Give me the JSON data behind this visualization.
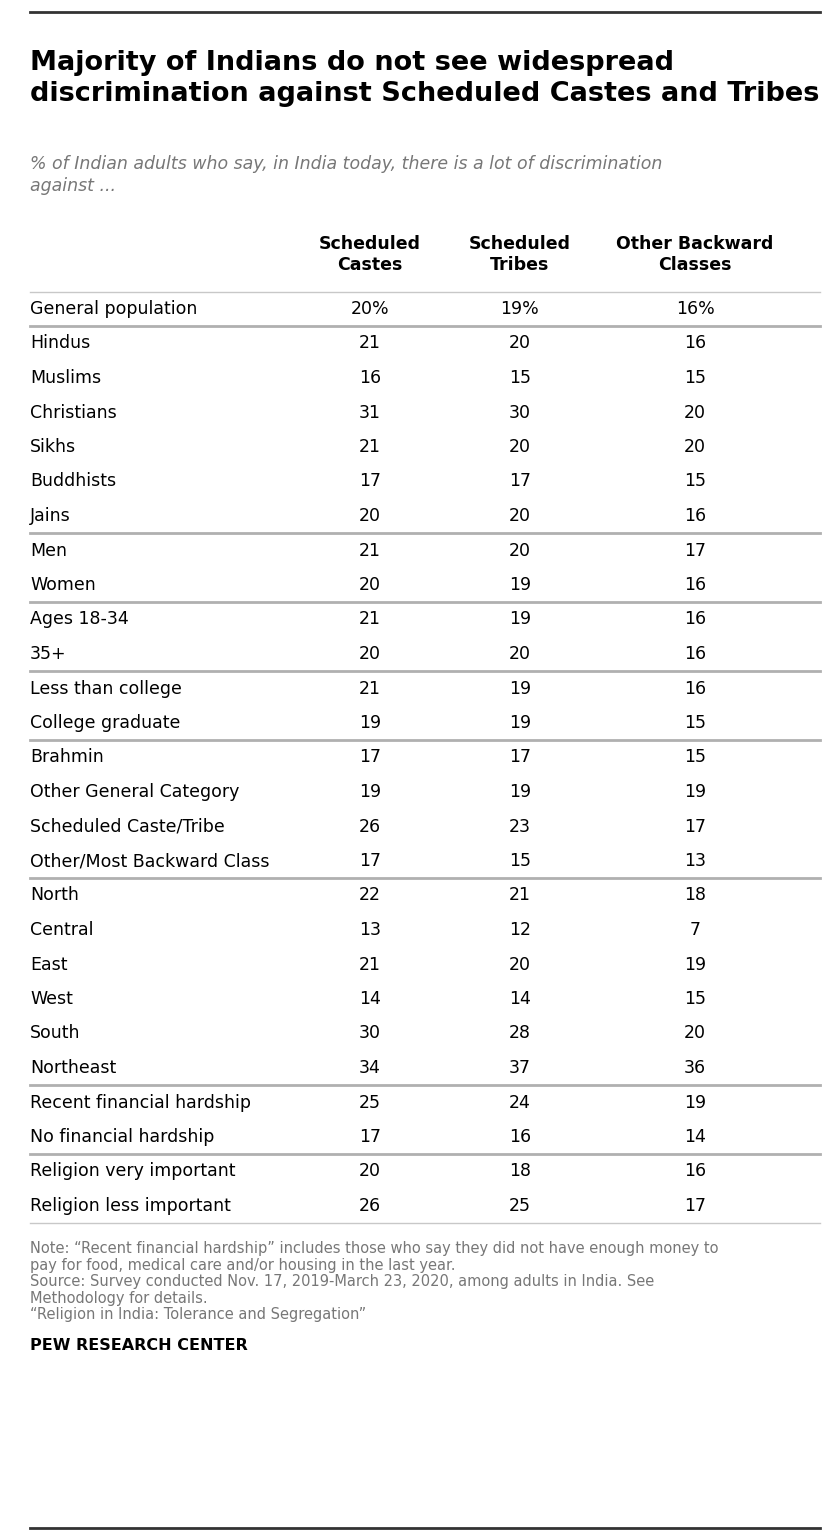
{
  "title": "Majority of Indians do not see widespread\ndiscrimination against Scheduled Castes and Tribes",
  "subtitle": "% of Indian adults who say, in India today, there is a lot of discrimination\nagainst ...",
  "col_headers": [
    "Scheduled\nCastes",
    "Scheduled\nTribes",
    "Other Backward\nClasses"
  ],
  "rows": [
    {
      "label": "General population",
      "values": [
        "20%",
        "19%",
        "16%"
      ],
      "bold": false,
      "separator_below": true
    },
    {
      "label": "Hindus",
      "values": [
        "21",
        "20",
        "16"
      ],
      "bold": false,
      "separator_below": false
    },
    {
      "label": "Muslims",
      "values": [
        "16",
        "15",
        "15"
      ],
      "bold": false,
      "separator_below": false
    },
    {
      "label": "Christians",
      "values": [
        "31",
        "30",
        "20"
      ],
      "bold": false,
      "separator_below": false
    },
    {
      "label": "Sikhs",
      "values": [
        "21",
        "20",
        "20"
      ],
      "bold": false,
      "separator_below": false
    },
    {
      "label": "Buddhists",
      "values": [
        "17",
        "17",
        "15"
      ],
      "bold": false,
      "separator_below": false
    },
    {
      "label": "Jains",
      "values": [
        "20",
        "20",
        "16"
      ],
      "bold": false,
      "separator_below": true
    },
    {
      "label": "Men",
      "values": [
        "21",
        "20",
        "17"
      ],
      "bold": false,
      "separator_below": false
    },
    {
      "label": "Women",
      "values": [
        "20",
        "19",
        "16"
      ],
      "bold": false,
      "separator_below": true
    },
    {
      "label": "Ages 18-34",
      "values": [
        "21",
        "19",
        "16"
      ],
      "bold": false,
      "separator_below": false
    },
    {
      "label": "35+",
      "values": [
        "20",
        "20",
        "16"
      ],
      "bold": false,
      "separator_below": true
    },
    {
      "label": "Less than college",
      "values": [
        "21",
        "19",
        "16"
      ],
      "bold": false,
      "separator_below": false
    },
    {
      "label": "College graduate",
      "values": [
        "19",
        "19",
        "15"
      ],
      "bold": false,
      "separator_below": true
    },
    {
      "label": "Brahmin",
      "values": [
        "17",
        "17",
        "15"
      ],
      "bold": false,
      "separator_below": false
    },
    {
      "label": "Other General Category",
      "values": [
        "19",
        "19",
        "19"
      ],
      "bold": false,
      "separator_below": false
    },
    {
      "label": "Scheduled Caste/Tribe",
      "values": [
        "26",
        "23",
        "17"
      ],
      "bold": false,
      "separator_below": false
    },
    {
      "label": "Other/Most Backward Class",
      "values": [
        "17",
        "15",
        "13"
      ],
      "bold": false,
      "separator_below": true
    },
    {
      "label": "North",
      "values": [
        "22",
        "21",
        "18"
      ],
      "bold": false,
      "separator_below": false
    },
    {
      "label": "Central",
      "values": [
        "13",
        "12",
        "7"
      ],
      "bold": false,
      "separator_below": false
    },
    {
      "label": "East",
      "values": [
        "21",
        "20",
        "19"
      ],
      "bold": false,
      "separator_below": false
    },
    {
      "label": "West",
      "values": [
        "14",
        "14",
        "15"
      ],
      "bold": false,
      "separator_below": false
    },
    {
      "label": "South",
      "values": [
        "30",
        "28",
        "20"
      ],
      "bold": false,
      "separator_below": false
    },
    {
      "label": "Northeast",
      "values": [
        "34",
        "37",
        "36"
      ],
      "bold": false,
      "separator_below": true
    },
    {
      "label": "Recent financial hardship",
      "values": [
        "25",
        "24",
        "19"
      ],
      "bold": false,
      "separator_below": false
    },
    {
      "label": "No financial hardship",
      "values": [
        "17",
        "16",
        "14"
      ],
      "bold": false,
      "separator_below": true
    },
    {
      "label": "Religion very important",
      "values": [
        "20",
        "18",
        "16"
      ],
      "bold": false,
      "separator_below": false
    },
    {
      "label": "Religion less important",
      "values": [
        "26",
        "25",
        "17"
      ],
      "bold": false,
      "separator_below": false
    }
  ],
  "note_lines": [
    "Note: “Recent financial hardship” includes those who say they did not have enough money to",
    "pay for food, medical care and/or housing in the last year.",
    "Source: Survey conducted Nov. 17, 2019-March 23, 2020, among adults in India. See",
    "Methodology for details.",
    "“Religion in India: Tolerance and Segregation”"
  ],
  "source_label": "PEW RESEARCH CENTER",
  "bg_color": "#ffffff",
  "text_color": "#000000",
  "separator_color": "#c8c8c8",
  "thick_sep_color": "#b0b0b0",
  "header_color": "#000000",
  "note_color": "#777777",
  "title_fontsize": 19.5,
  "subtitle_fontsize": 12.5,
  "row_fontsize": 12.5,
  "header_fontsize": 12.5,
  "note_fontsize": 10.5,
  "source_fontsize": 11.5
}
